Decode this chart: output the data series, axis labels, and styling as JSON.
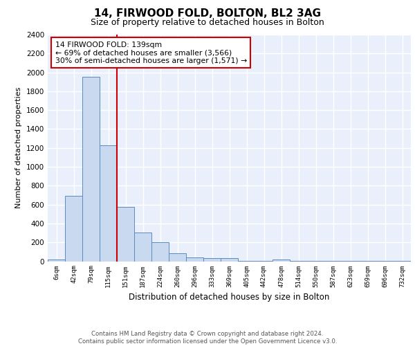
{
  "title1": "14, FIRWOOD FOLD, BOLTON, BL2 3AG",
  "title2": "Size of property relative to detached houses in Bolton",
  "xlabel": "Distribution of detached houses by size in Bolton",
  "ylabel": "Number of detached properties",
  "bin_labels": [
    "6sqm",
    "42sqm",
    "79sqm",
    "115sqm",
    "151sqm",
    "187sqm",
    "224sqm",
    "260sqm",
    "296sqm",
    "333sqm",
    "369sqm",
    "405sqm",
    "442sqm",
    "478sqm",
    "514sqm",
    "550sqm",
    "587sqm",
    "623sqm",
    "659sqm",
    "696sqm",
    "732sqm"
  ],
  "bar_values": [
    20,
    690,
    1950,
    1230,
    575,
    305,
    200,
    85,
    40,
    30,
    30,
    5,
    5,
    20,
    5,
    5,
    5,
    5,
    5,
    5,
    5
  ],
  "bar_color": "#c9d9f0",
  "bar_edge_color": "#5a8abf",
  "bg_color": "#eaf0fb",
  "grid_color": "#ffffff",
  "redline_bin": 4,
  "annotation_text": "14 FIRWOOD FOLD: 139sqm\n← 69% of detached houses are smaller (3,566)\n30% of semi-detached houses are larger (1,571) →",
  "annotation_box_color": "#ffffff",
  "annotation_box_edge": "#cc0000",
  "ylim": [
    0,
    2400
  ],
  "yticks": [
    0,
    200,
    400,
    600,
    800,
    1000,
    1200,
    1400,
    1600,
    1800,
    2000,
    2200,
    2400
  ],
  "footer1": "Contains HM Land Registry data © Crown copyright and database right 2024.",
  "footer2": "Contains public sector information licensed under the Open Government Licence v3.0."
}
